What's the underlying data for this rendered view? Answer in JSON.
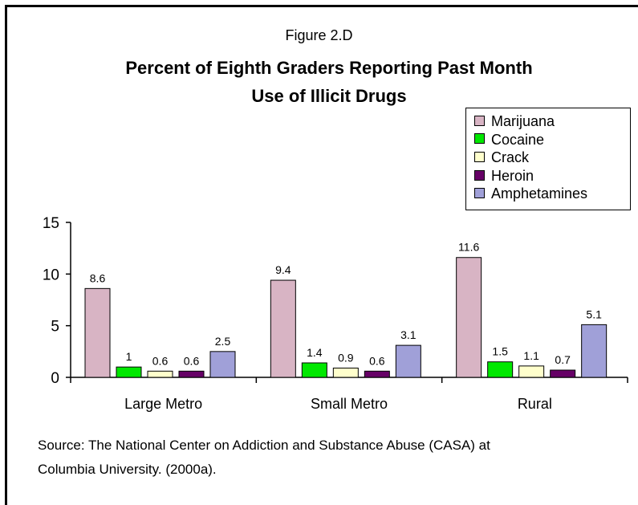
{
  "figure_label": "Figure 2.D",
  "title_line1": "Percent of Eighth Graders Reporting Past Month",
  "title_line2": "Use of Illicit Drugs",
  "source_line1": "Source: The National Center on Addiction and Substance Abuse (CASA) at",
  "source_line2": "Columbia University. (2000a).",
  "chart_data": {
    "type": "bar",
    "title": "Percent of Eighth Graders Reporting Past Month Use of Illicit Drugs",
    "categories": [
      "Large Metro",
      "Small Metro",
      "Rural"
    ],
    "series": [
      {
        "name": "Marijuana",
        "values": [
          8.6,
          9.4,
          11.6
        ],
        "color": "#d8b4c4",
        "labels": [
          "8.6",
          "9.4",
          "11.6"
        ]
      },
      {
        "name": "Cocaine",
        "values": [
          1,
          1.4,
          1.5
        ],
        "color": "#00e800",
        "labels": [
          "1",
          "1.4",
          "1.5"
        ]
      },
      {
        "name": "Crack",
        "values": [
          0.6,
          0.9,
          1.1
        ],
        "color": "#ffffcc",
        "labels": [
          "0.6",
          "0.9",
          "1.1"
        ]
      },
      {
        "name": "Heroin",
        "values": [
          0.6,
          0.6,
          0.7
        ],
        "color": "#660066",
        "labels": [
          "0.6",
          "0.6",
          "0.7"
        ]
      },
      {
        "name": "Amphetamines",
        "values": [
          2.5,
          3.1,
          5.1
        ],
        "color": "#a0a0d8",
        "labels": [
          "2.5",
          "3.1",
          "5.1"
        ]
      }
    ],
    "ylim": [
      0,
      15
    ],
    "yticks": [
      "0",
      "5",
      "10",
      "15"
    ],
    "grid": false,
    "legend_position": "top-right"
  }
}
